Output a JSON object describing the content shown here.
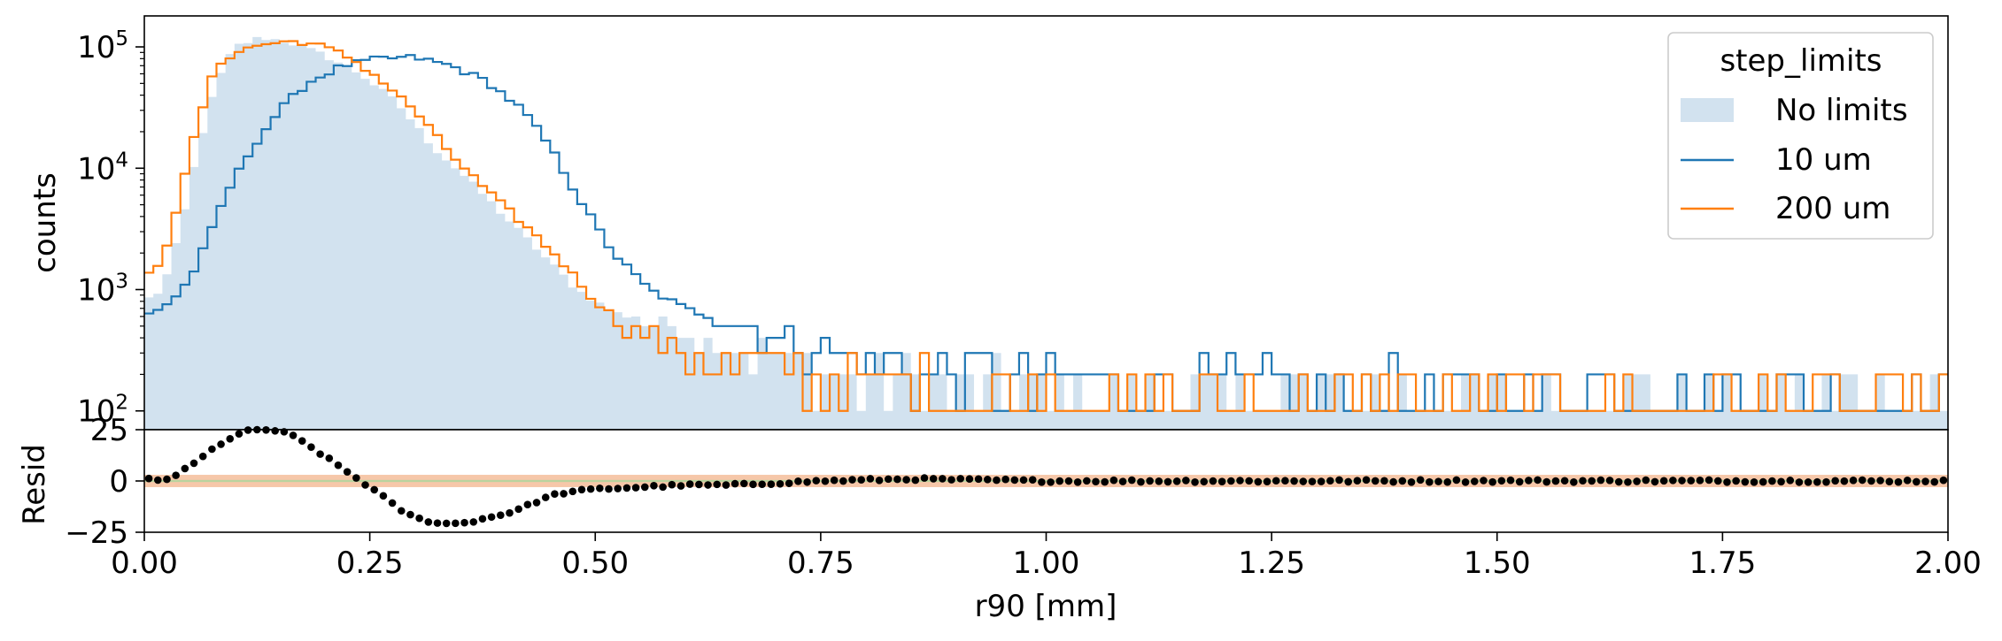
{
  "chart_data": [
    {
      "type": "step-histogram",
      "panel": "main",
      "ylabel": "counts",
      "yscale": "log",
      "ylim": [
        70,
        180000
      ],
      "xlim": [
        0.0,
        2.0
      ],
      "yticks": [
        {
          "value": 100,
          "base": "10",
          "exp": "2"
        },
        {
          "value": 1000,
          "base": "10",
          "exp": "3"
        },
        {
          "value": 10000,
          "base": "10",
          "exp": "4"
        },
        {
          "value": 100000,
          "base": "10",
          "exp": "5"
        }
      ],
      "legend": {
        "title": "step_limits",
        "position": "upper right"
      },
      "bin_width": 0.01,
      "series": [
        {
          "name": "No limits",
          "style": "filled",
          "color": "#d2e2ef",
          "knots": [
            [
              0.0,
              800
            ],
            [
              0.02,
              1000
            ],
            [
              0.04,
              3000
            ],
            [
              0.06,
              15000
            ],
            [
              0.08,
              50000
            ],
            [
              0.1,
              100000
            ],
            [
              0.13,
              120000
            ],
            [
              0.16,
              110000
            ],
            [
              0.2,
              85000
            ],
            [
              0.24,
              60000
            ],
            [
              0.28,
              35000
            ],
            [
              0.32,
              15000
            ],
            [
              0.36,
              8000
            ],
            [
              0.4,
              4000
            ],
            [
              0.44,
              2000
            ],
            [
              0.48,
              1000
            ],
            [
              0.52,
              650
            ],
            [
              0.6,
              450
            ],
            [
              0.7,
              250
            ],
            [
              0.85,
              150
            ],
            [
              1.0,
              120
            ],
            [
              1.5,
              100
            ],
            [
              2.0,
              100
            ]
          ]
        },
        {
          "name": "10 um",
          "style": "step",
          "color": "#1f77b4",
          "knots": [
            [
              0.0,
              600
            ],
            [
              0.03,
              800
            ],
            [
              0.05,
              1200
            ],
            [
              0.07,
              2500
            ],
            [
              0.09,
              6000
            ],
            [
              0.12,
              15000
            ],
            [
              0.15,
              30000
            ],
            [
              0.18,
              50000
            ],
            [
              0.22,
              70000
            ],
            [
              0.26,
              80000
            ],
            [
              0.3,
              82000
            ],
            [
              0.34,
              70000
            ],
            [
              0.38,
              52000
            ],
            [
              0.42,
              30000
            ],
            [
              0.45,
              15000
            ],
            [
              0.48,
              6000
            ],
            [
              0.52,
              2000
            ],
            [
              0.56,
              1000
            ],
            [
              0.6,
              700
            ],
            [
              0.7,
              400
            ],
            [
              0.8,
              250
            ],
            [
              0.9,
              200
            ],
            [
              1.0,
              150
            ],
            [
              1.5,
              130
            ],
            [
              2.0,
              130
            ]
          ]
        },
        {
          "name": "200 um",
          "style": "step",
          "color": "#ff7f0e",
          "knots": [
            [
              0.0,
              1200
            ],
            [
              0.02,
              1800
            ],
            [
              0.04,
              6000
            ],
            [
              0.06,
              25000
            ],
            [
              0.08,
              70000
            ],
            [
              0.1,
              90000
            ],
            [
              0.13,
              105000
            ],
            [
              0.17,
              112000
            ],
            [
              0.2,
              100000
            ],
            [
              0.23,
              80000
            ],
            [
              0.26,
              55000
            ],
            [
              0.3,
              30000
            ],
            [
              0.34,
              13000
            ],
            [
              0.38,
              6500
            ],
            [
              0.42,
              3500
            ],
            [
              0.46,
              1800
            ],
            [
              0.5,
              800
            ],
            [
              0.55,
              400
            ],
            [
              0.6,
              300
            ],
            [
              0.7,
              200
            ],
            [
              0.85,
              150
            ],
            [
              1.0,
              120
            ],
            [
              1.5,
              100
            ],
            [
              2.0,
              100
            ]
          ]
        }
      ]
    },
    {
      "type": "scatter",
      "panel": "residual",
      "ylabel": "Resid",
      "xlabel": "r90 [mm]",
      "ylim": [
        -25,
        25
      ],
      "yticks": [
        -25,
        0,
        25
      ],
      "xlim": [
        0.0,
        2.0
      ],
      "xticks": [
        "0.00",
        "0.25",
        "0.50",
        "0.75",
        "1.00",
        "1.25",
        "1.50",
        "1.75",
        "2.00"
      ],
      "bands": [
        {
          "from": -3,
          "to": 3,
          "color": "#f6c7a9"
        },
        {
          "from": -0.5,
          "to": 0.5,
          "color": "#b9d39e"
        }
      ],
      "point_color": "#000000",
      "bin_width": 0.01,
      "knots": [
        [
          0.0,
          1
        ],
        [
          0.02,
          0
        ],
        [
          0.04,
          4
        ],
        [
          0.06,
          10
        ],
        [
          0.08,
          17
        ],
        [
          0.1,
          22
        ],
        [
          0.12,
          25
        ],
        [
          0.14,
          25
        ],
        [
          0.16,
          23
        ],
        [
          0.18,
          18
        ],
        [
          0.2,
          12
        ],
        [
          0.22,
          6
        ],
        [
          0.24,
          0
        ],
        [
          0.26,
          -6
        ],
        [
          0.28,
          -13
        ],
        [
          0.3,
          -18
        ],
        [
          0.32,
          -20
        ],
        [
          0.34,
          -21
        ],
        [
          0.36,
          -20
        ],
        [
          0.38,
          -18
        ],
        [
          0.4,
          -16
        ],
        [
          0.42,
          -13
        ],
        [
          0.44,
          -9
        ],
        [
          0.46,
          -6
        ],
        [
          0.5,
          -4
        ],
        [
          0.55,
          -3
        ],
        [
          0.6,
          -2
        ],
        [
          0.65,
          -2
        ],
        [
          0.7,
          -1
        ],
        [
          0.75,
          0
        ],
        [
          0.85,
          1
        ],
        [
          1.0,
          0
        ],
        [
          2.0,
          0
        ]
      ]
    }
  ]
}
